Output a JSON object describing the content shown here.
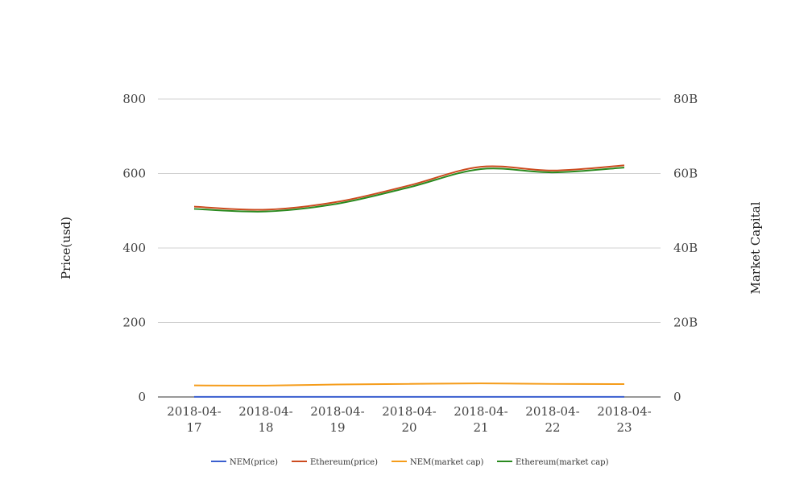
{
  "chart_data": {
    "type": "line",
    "categories": [
      "2018-04-17",
      "2018-04-18",
      "2018-04-19",
      "2018-04-20",
      "2018-04-21",
      "2018-04-22",
      "2018-04-23"
    ],
    "category_display": [
      [
        "2018-04-",
        "17"
      ],
      [
        "2018-04-",
        "18"
      ],
      [
        "2018-04-",
        "19"
      ],
      [
        "2018-04-",
        "20"
      ],
      [
        "2018-04-",
        "21"
      ],
      [
        "2018-04-",
        "22"
      ],
      [
        "2018-04-",
        "23"
      ]
    ],
    "ylabel_left": "Price(usd)",
    "ylabel_right": "Market Capital",
    "ylim_left": [
      0,
      800
    ],
    "ylim_right": [
      0,
      80000000000
    ],
    "yticks_left": [
      "0",
      "200",
      "400",
      "600",
      "800"
    ],
    "yticks_right": [
      "0",
      "20B",
      "40B",
      "60B",
      "80B"
    ],
    "grid": true,
    "legend_position": "bottom",
    "series": [
      {
        "name": "NEM(price)",
        "axis": "left",
        "color": "#3b5fcf",
        "values": [
          0.32,
          0.31,
          0.33,
          0.35,
          0.37,
          0.35,
          0.34
        ]
      },
      {
        "name": "Ethereum(price)",
        "axis": "left",
        "color": "#cc4b1f",
        "values": [
          511,
          503,
          524,
          568,
          618,
          608,
          622
        ]
      },
      {
        "name": "NEM(market cap)",
        "axis": "right",
        "color": "#f59c1a",
        "values": [
          3100000000,
          3050000000,
          3350000000,
          3500000000,
          3650000000,
          3500000000,
          3450000000
        ]
      },
      {
        "name": "Ethereum(market cap)",
        "axis": "right",
        "color": "#2a8a1f",
        "values": [
          50500000000,
          49800000000,
          51900000000,
          56300000000,
          61200000000,
          60300000000,
          61600000000
        ]
      }
    ]
  }
}
